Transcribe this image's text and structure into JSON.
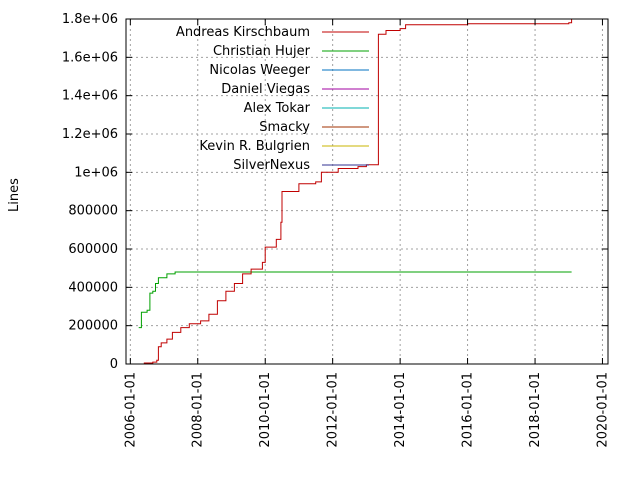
{
  "chart_data": {
    "type": "line",
    "title": "",
    "xlabel": "",
    "ylabel": "Lines",
    "x_type": "date",
    "xlim": [
      "2005-11-15",
      "2020-03-01"
    ],
    "ylim": [
      0,
      1800000
    ],
    "grid": true,
    "legend_position": "top-left",
    "x_ticks": [
      "2006-01-01",
      "2008-01-01",
      "2010-01-01",
      "2012-01-01",
      "2014-01-01",
      "2016-01-01",
      "2018-01-01",
      "2020-01-01"
    ],
    "y_ticks": [
      {
        "value": 0,
        "label": "0"
      },
      {
        "value": 200000,
        "label": "200000"
      },
      {
        "value": 400000,
        "label": "400000"
      },
      {
        "value": 600000,
        "label": "600000"
      },
      {
        "value": 800000,
        "label": "800000"
      },
      {
        "value": 1000000,
        "label": "1e+06"
      },
      {
        "value": 1200000,
        "label": "1.2e+06"
      },
      {
        "value": 1400000,
        "label": "1.4e+06"
      },
      {
        "value": 1600000,
        "label": "1.6e+06"
      },
      {
        "value": 1800000,
        "label": "1.8e+06"
      }
    ],
    "series": [
      {
        "name": "Andreas Kirschbaum",
        "color": "#c00000",
        "points": [
          [
            "2006-05-01",
            0
          ],
          [
            "2006-06-01",
            5000
          ],
          [
            "2006-09-01",
            10000
          ],
          [
            "2006-10-15",
            20000
          ],
          [
            "2006-11-01",
            90000
          ],
          [
            "2006-12-01",
            110000
          ],
          [
            "2007-02-01",
            130000
          ],
          [
            "2007-04-01",
            165000
          ],
          [
            "2007-07-01",
            190000
          ],
          [
            "2007-10-01",
            210000
          ],
          [
            "2008-02-01",
            225000
          ],
          [
            "2008-05-01",
            260000
          ],
          [
            "2008-08-01",
            330000
          ],
          [
            "2008-11-01",
            380000
          ],
          [
            "2009-02-01",
            420000
          ],
          [
            "2009-05-01",
            470000
          ],
          [
            "2009-08-01",
            495000
          ],
          [
            "2009-12-01",
            530000
          ],
          [
            "2010-01-01",
            610000
          ],
          [
            "2010-05-01",
            650000
          ],
          [
            "2010-06-20",
            740000
          ],
          [
            "2010-07-01",
            900000
          ],
          [
            "2011-01-01",
            940000
          ],
          [
            "2011-07-01",
            950000
          ],
          [
            "2011-09-01",
            1000000
          ],
          [
            "2012-03-01",
            1020000
          ],
          [
            "2012-10-01",
            1030000
          ],
          [
            "2013-01-01",
            1040000
          ],
          [
            "2013-05-01",
            1040000
          ],
          [
            "2013-05-10",
            1720000
          ],
          [
            "2013-08-01",
            1740000
          ],
          [
            "2014-01-01",
            1750000
          ],
          [
            "2014-03-01",
            1770000
          ],
          [
            "2016-01-01",
            1775000
          ],
          [
            "2019-01-01",
            1780000
          ],
          [
            "2019-02-01",
            1800000
          ]
        ]
      },
      {
        "name": "Christian Hujer",
        "color": "#00a000",
        "points": [
          [
            "2006-04-01",
            190000
          ],
          [
            "2006-05-01",
            270000
          ],
          [
            "2006-07-01",
            280000
          ],
          [
            "2006-08-01",
            370000
          ],
          [
            "2006-09-01",
            380000
          ],
          [
            "2006-10-01",
            420000
          ],
          [
            "2006-11-01",
            450000
          ],
          [
            "2007-02-01",
            470000
          ],
          [
            "2007-05-01",
            480000
          ],
          [
            "2019-02-01",
            480000
          ]
        ]
      },
      {
        "name": "Nicolas Weeger",
        "color": "#0070c0",
        "points": [
          [
            "2006-04-01",
            0
          ],
          [
            "2019-02-01",
            0
          ]
        ]
      },
      {
        "name": "Daniel Viegas",
        "color": "#a000a0",
        "points": [
          [
            "2006-04-01",
            0
          ],
          [
            "2015-06-01",
            0
          ]
        ]
      },
      {
        "name": "Alex Tokar",
        "color": "#00b0b0",
        "points": [
          [
            "2015-06-01",
            0
          ],
          [
            "2019-02-01",
            0
          ]
        ]
      },
      {
        "name": "Smacky",
        "color": "#a03000",
        "points": [
          [
            "2006-04-01",
            0
          ],
          [
            "2019-02-01",
            0
          ]
        ]
      },
      {
        "name": "Kevin R. Bulgrien",
        "color": "#c8b400",
        "points": [
          [
            "2006-04-01",
            0
          ],
          [
            "2019-02-01",
            0
          ]
        ]
      },
      {
        "name": "SilverNexus",
        "color": "#303090",
        "points": [
          [
            "2006-04-01",
            0
          ],
          [
            "2019-02-01",
            0
          ]
        ]
      }
    ]
  }
}
